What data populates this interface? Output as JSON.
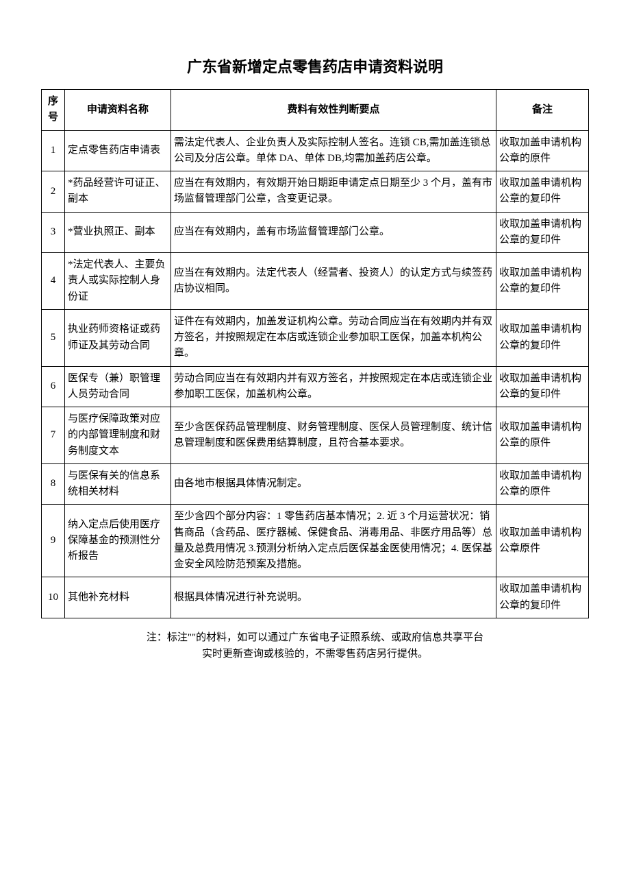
{
  "title": "广东省新增定点零售药店申请资料说明",
  "table": {
    "headers": {
      "seq": "序号",
      "name": "申请资料名称",
      "detail": "费料有效性判断要点",
      "remark": "备注"
    },
    "rows": [
      {
        "seq": "1",
        "name": "定点零售药店申请表",
        "detail": "需法定代表人、企业负责人及实际控制人签名。连锁 CB,需加盖连锁总公司及分店公章。单体 DA、单体 DB,均需加盖药店公章。",
        "remark": "收取加盖申请机构公章的原件"
      },
      {
        "seq": "2",
        "name": "*药品经营许可证正、副本",
        "detail": "应当在有效期内，有效期开始日期距申请定点日期至少 3 个月，盖有市场监督管理部门公章，含变更记录。",
        "remark": "收取加盖申请机构公章的复印件"
      },
      {
        "seq": "3",
        "name": "*营业执照正、副本",
        "detail": "应当在有效期内，盖有市场监督管理部门公章。",
        "remark": "收取加盖申请机构公章的复印件"
      },
      {
        "seq": "4",
        "name": "*法定代表人、主要负责人或实际控制人身份证",
        "detail": "应当在有效期内。法定代表人（经营者、投资人）的认定方式与续签药店协议相同。",
        "remark": "收取加盖申请机构公章的复印件"
      },
      {
        "seq": "5",
        "name": "执业药师资格证或药师证及其劳动合同",
        "detail": "证件在有效期内，加盖发证机构公章。劳动合同应当在有效期内并有双方签名，并按照规定在本店或连锁企业参加职工医保，加盖本机构公章。",
        "remark": "收取加盖申请机构公章的复印件"
      },
      {
        "seq": "6",
        "name": "医保专（兼）职管理人员劳动合同",
        "detail": "劳动合同应当在有效期内并有双方签名，并按照规定在本店或连锁企业参加职工医保，加盖机构公章。",
        "remark": "收取加盖申请机构公章的复印件"
      },
      {
        "seq": "7",
        "name": "与医疗保障政策对应的内部管理制度和财务制度文本",
        "detail": "至少含医保药品管理制度、财务管理制度、医保人员管理制度、统计信息管理制度和医保费用结算制度，且符合基本要求。",
        "remark": "收取加盖申请机构公章的原件"
      },
      {
        "seq": "8",
        "name": "与医保有关的信息系统相关材料",
        "detail": "由各地市根据具体情况制定。",
        "remark": "收取加盖申请机构公章的原件"
      },
      {
        "seq": "9",
        "name": "纳入定点后使用医疗保障基金的预测性分析报告",
        "detail": "至少含四个部分内容：1 零售药店基本情况；2. 近 3 个月运营状况：销售商品（含药品、医疗器械、保健食品、消毒用品、非医疗用品等）总量及总费用情况 3.预测分析纳入定点后医保基金医使用情况；4. 医保基金安全风险防范预案及措施。",
        "remark": "收取加盖申请机构公章原件"
      },
      {
        "seq": "10",
        "name": "其他补充材料",
        "detail": "根据具体情况进行补充说明。",
        "remark": "收取加盖申请机构公章的复印件"
      }
    ]
  },
  "footnote_line1": "注：标注\"\"的材料，如可以通过广东省电子证照系统、或政府信息共享平台",
  "footnote_line2": "实时更新查询或核验的，不需零售药店另行提供。",
  "colors": {
    "text": "#000000",
    "border": "#000000",
    "background": "#ffffff"
  },
  "typography": {
    "title_fontsize": 22,
    "body_fontsize": 15,
    "font_family": "SimSun"
  }
}
